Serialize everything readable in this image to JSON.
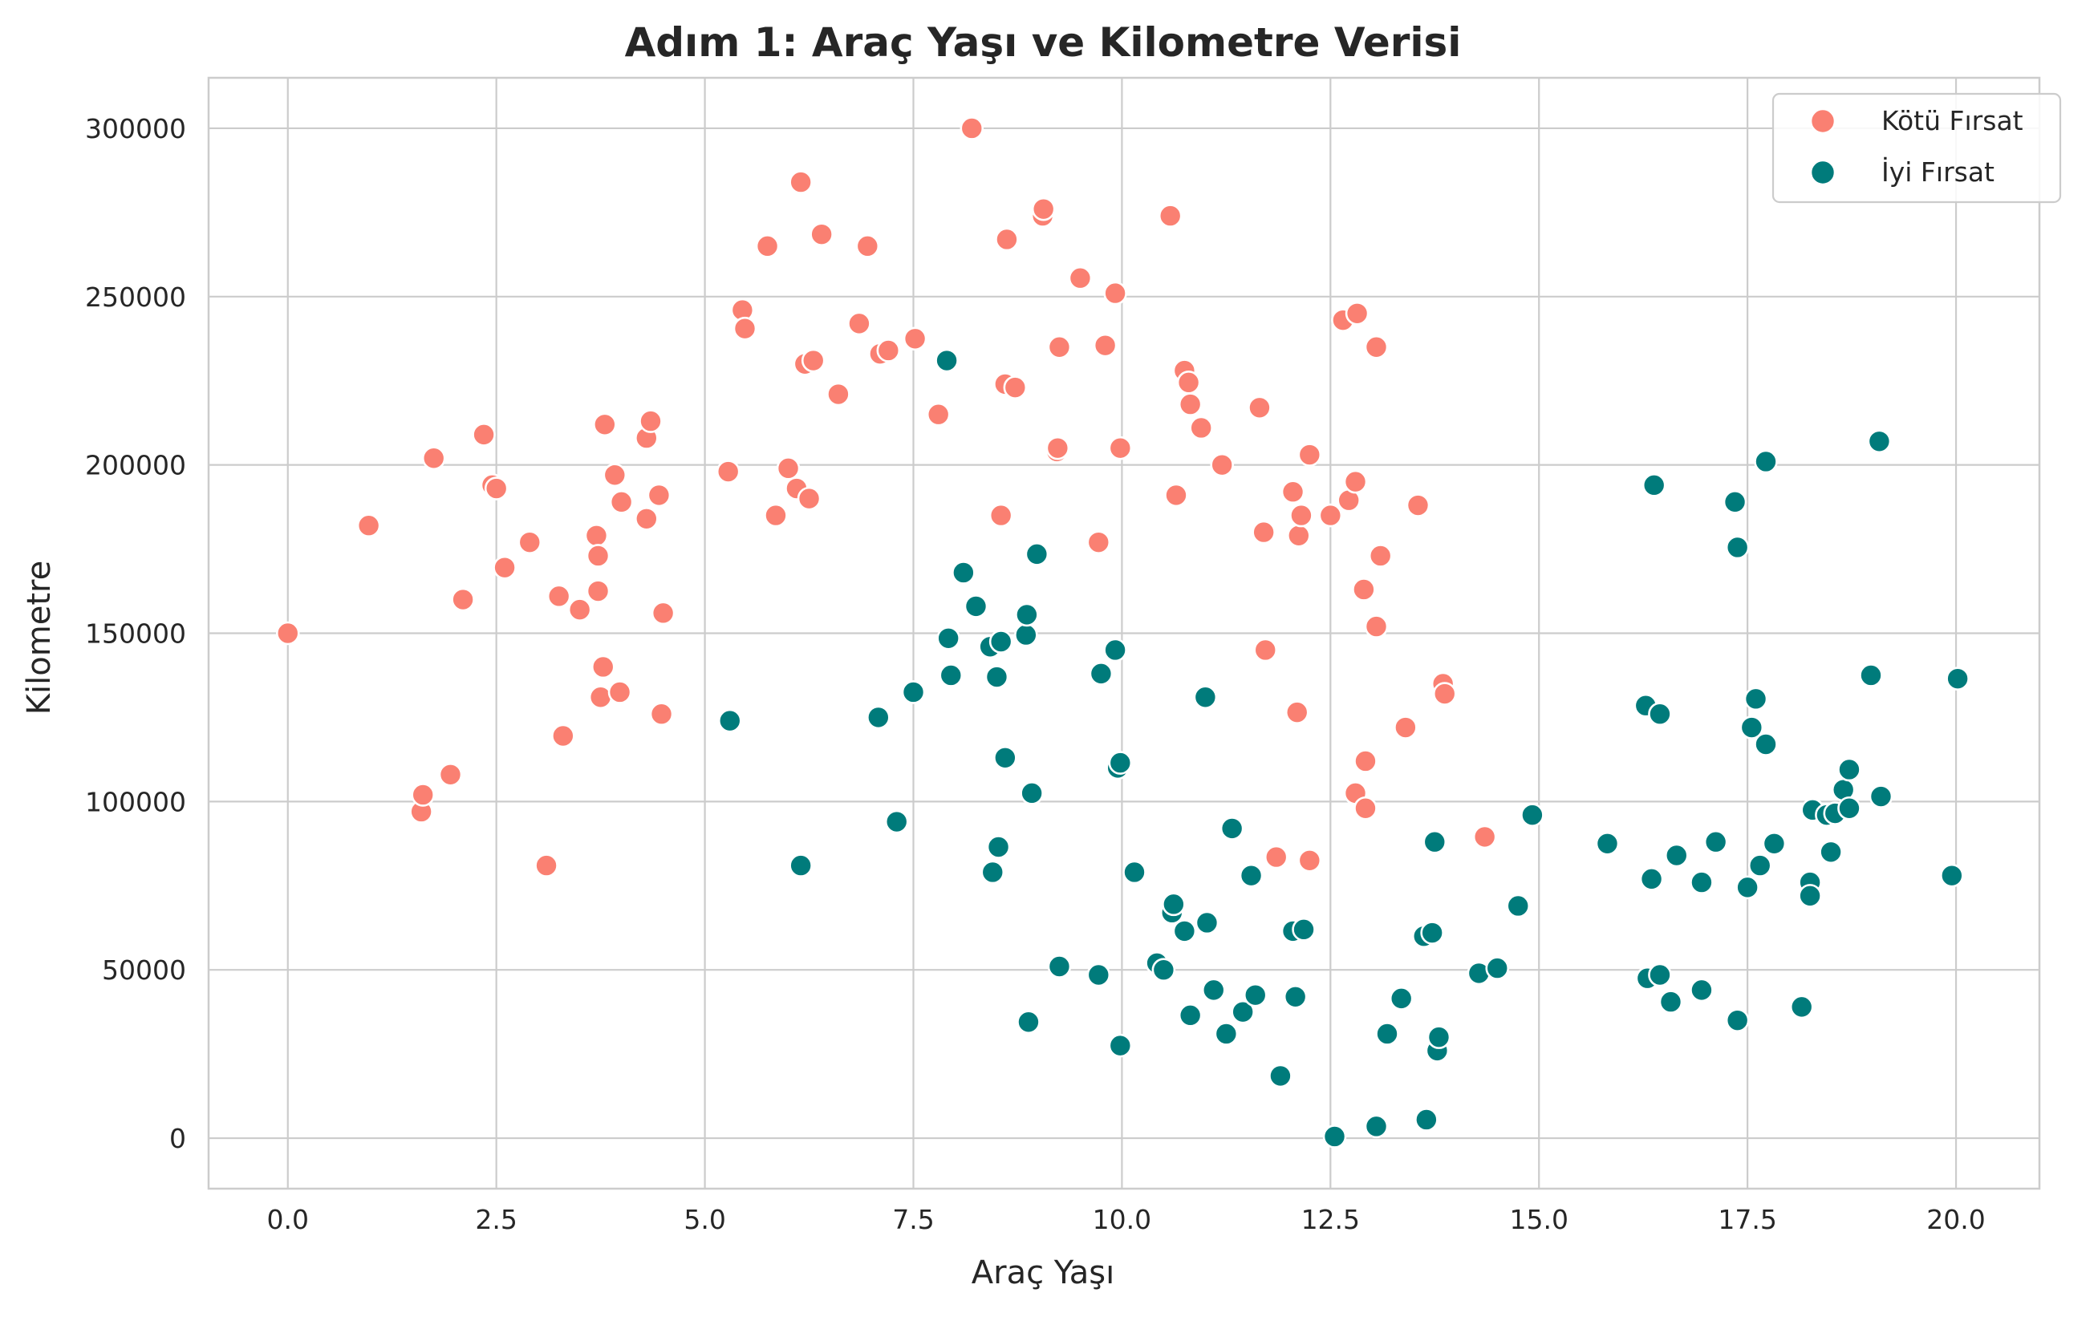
{
  "chart_data": {
    "type": "scatter",
    "title": "Adım 1: Araç Yaşı ve Kilometre Verisi",
    "xlabel": "Araç Yaşı",
    "ylabel": "Kilometre",
    "xlim": [
      -0.95,
      21.0
    ],
    "ylim": [
      -15000,
      315000
    ],
    "xticks": [
      0,
      2.5,
      5,
      7.5,
      10,
      12.5,
      15,
      17.5,
      20
    ],
    "xtick_labels": [
      "0.0",
      "2.5",
      "5.0",
      "7.5",
      "10.0",
      "12.5",
      "15.0",
      "17.5",
      "20.0"
    ],
    "yticks": [
      0,
      50000,
      100000,
      150000,
      200000,
      250000,
      300000
    ],
    "ytick_labels": [
      "0",
      "50000",
      "100000",
      "150000",
      "200000",
      "250000",
      "300000"
    ],
    "grid": true,
    "legend": "top-right",
    "series": [
      {
        "name": "Kötü Fırsat",
        "color": "#fa8072",
        "points": [
          [
            0.0,
            150000
          ],
          [
            0.97,
            182000
          ],
          [
            1.6,
            97000
          ],
          [
            1.62,
            102000
          ],
          [
            1.75,
            202000
          ],
          [
            1.95,
            108000
          ],
          [
            2.1,
            160000
          ],
          [
            2.35,
            209000
          ],
          [
            2.45,
            194000
          ],
          [
            2.5,
            193000
          ],
          [
            2.6,
            169500
          ],
          [
            2.9,
            177000
          ],
          [
            3.1,
            81000
          ],
          [
            3.25,
            161000
          ],
          [
            3.3,
            119500
          ],
          [
            3.5,
            157000
          ],
          [
            3.7,
            179000
          ],
          [
            3.72,
            173000
          ],
          [
            3.72,
            162500
          ],
          [
            3.75,
            131000
          ],
          [
            3.78,
            140000
          ],
          [
            3.8,
            212000
          ],
          [
            3.92,
            197000
          ],
          [
            3.98,
            132500
          ],
          [
            4.0,
            189000
          ],
          [
            4.3,
            208000
          ],
          [
            4.3,
            184000
          ],
          [
            4.35,
            213000
          ],
          [
            4.45,
            191000
          ],
          [
            4.48,
            126000
          ],
          [
            4.5,
            156000
          ],
          [
            5.28,
            198000
          ],
          [
            5.45,
            246000
          ],
          [
            5.48,
            240500
          ],
          [
            5.75,
            265000
          ],
          [
            5.85,
            185000
          ],
          [
            6.0,
            199000
          ],
          [
            6.1,
            193000
          ],
          [
            6.15,
            284000
          ],
          [
            6.2,
            230000
          ],
          [
            6.25,
            190000
          ],
          [
            6.3,
            231000
          ],
          [
            6.4,
            268500
          ],
          [
            6.6,
            221000
          ],
          [
            6.85,
            242000
          ],
          [
            6.95,
            265000
          ],
          [
            7.1,
            233000
          ],
          [
            7.2,
            234000
          ],
          [
            7.52,
            237500
          ],
          [
            7.8,
            215000
          ],
          [
            8.2,
            300000
          ],
          [
            8.55,
            185000
          ],
          [
            8.6,
            224000
          ],
          [
            8.62,
            267000
          ],
          [
            8.72,
            223000
          ],
          [
            9.05,
            274000
          ],
          [
            9.06,
            276000
          ],
          [
            9.22,
            204000
          ],
          [
            9.23,
            205000
          ],
          [
            9.25,
            235000
          ],
          [
            9.5,
            255500
          ],
          [
            9.72,
            177000
          ],
          [
            9.8,
            235500
          ],
          [
            9.92,
            251000
          ],
          [
            9.98,
            205000
          ],
          [
            10.58,
            274000
          ],
          [
            10.65,
            191000
          ],
          [
            10.75,
            228000
          ],
          [
            10.8,
            224500
          ],
          [
            10.82,
            218000
          ],
          [
            10.95,
            211000
          ],
          [
            11.2,
            200000
          ],
          [
            11.65,
            217000
          ],
          [
            11.7,
            180000
          ],
          [
            11.72,
            145000
          ],
          [
            11.85,
            83500
          ],
          [
            12.05,
            192000
          ],
          [
            12.1,
            126500
          ],
          [
            12.12,
            179000
          ],
          [
            12.15,
            185000
          ],
          [
            12.25,
            203000
          ],
          [
            12.25,
            82500
          ],
          [
            12.5,
            185000
          ],
          [
            12.65,
            243000
          ],
          [
            12.72,
            189500
          ],
          [
            12.82,
            245000
          ],
          [
            12.8,
            195000
          ],
          [
            12.8,
            102500
          ],
          [
            12.9,
            163000
          ],
          [
            12.92,
            112000
          ],
          [
            12.92,
            98000
          ],
          [
            13.05,
            235000
          ],
          [
            13.05,
            152000
          ],
          [
            13.1,
            173000
          ],
          [
            13.4,
            122000
          ],
          [
            13.55,
            188000
          ],
          [
            13.85,
            135000
          ],
          [
            13.87,
            132000
          ],
          [
            14.35,
            89500
          ]
        ]
      },
      {
        "name": "İyi Fırsat",
        "color": "#007b7b",
        "points": [
          [
            5.3,
            124000
          ],
          [
            6.15,
            81000
          ],
          [
            7.08,
            125000
          ],
          [
            7.3,
            94000
          ],
          [
            7.5,
            132500
          ],
          [
            7.9,
            231000
          ],
          [
            7.92,
            148500
          ],
          [
            7.95,
            137500
          ],
          [
            8.1,
            168000
          ],
          [
            8.25,
            158000
          ],
          [
            8.42,
            146000
          ],
          [
            8.45,
            79000
          ],
          [
            8.5,
            137000
          ],
          [
            8.52,
            86500
          ],
          [
            8.55,
            147500
          ],
          [
            8.6,
            113000
          ],
          [
            8.85,
            149500
          ],
          [
            8.86,
            155500
          ],
          [
            8.88,
            34500
          ],
          [
            8.92,
            102500
          ],
          [
            8.98,
            173500
          ],
          [
            9.25,
            51000
          ],
          [
            9.72,
            48500
          ],
          [
            9.75,
            138000
          ],
          [
            9.95,
            110000
          ],
          [
            9.98,
            111500
          ],
          [
            9.92,
            145000
          ],
          [
            9.98,
            27500
          ],
          [
            10.15,
            79000
          ],
          [
            10.42,
            52000
          ],
          [
            10.5,
            50000
          ],
          [
            10.6,
            67000
          ],
          [
            10.62,
            69500
          ],
          [
            10.75,
            61500
          ],
          [
            10.82,
            36500
          ],
          [
            11.0,
            131000
          ],
          [
            11.02,
            64000
          ],
          [
            11.1,
            44000
          ],
          [
            11.25,
            31000
          ],
          [
            11.32,
            92000
          ],
          [
            11.45,
            37500
          ],
          [
            11.55,
            78000
          ],
          [
            11.6,
            42500
          ],
          [
            11.9,
            18500
          ],
          [
            12.05,
            61500
          ],
          [
            12.08,
            42000
          ],
          [
            12.18,
            62000
          ],
          [
            12.55,
            500
          ],
          [
            13.05,
            3500
          ],
          [
            13.18,
            31000
          ],
          [
            13.35,
            41500
          ],
          [
            13.62,
            60000
          ],
          [
            13.65,
            5500
          ],
          [
            13.72,
            61000
          ],
          [
            13.75,
            88000
          ],
          [
            13.78,
            26000
          ],
          [
            13.8,
            30000
          ],
          [
            14.28,
            49000
          ],
          [
            14.5,
            50500
          ],
          [
            14.75,
            69000
          ],
          [
            14.92,
            96000
          ],
          [
            15.82,
            87500
          ],
          [
            16.28,
            128500
          ],
          [
            16.3,
            47500
          ],
          [
            16.35,
            77000
          ],
          [
            16.38,
            194000
          ],
          [
            16.45,
            126000
          ],
          [
            16.45,
            48500
          ],
          [
            16.58,
            40500
          ],
          [
            16.65,
            84000
          ],
          [
            16.95,
            76000
          ],
          [
            16.95,
            44000
          ],
          [
            17.12,
            88000
          ],
          [
            17.38,
            35000
          ],
          [
            17.35,
            189000
          ],
          [
            17.38,
            175500
          ],
          [
            17.5,
            74500
          ],
          [
            17.55,
            122000
          ],
          [
            17.6,
            130500
          ],
          [
            17.65,
            81000
          ],
          [
            17.72,
            201000
          ],
          [
            17.72,
            117000
          ],
          [
            17.82,
            87500
          ],
          [
            18.15,
            39000
          ],
          [
            18.25,
            76000
          ],
          [
            18.25,
            72000
          ],
          [
            18.28,
            97500
          ],
          [
            18.45,
            96000
          ],
          [
            18.5,
            85000
          ],
          [
            18.55,
            96500
          ],
          [
            18.65,
            103500
          ],
          [
            18.72,
            98000
          ],
          [
            18.72,
            109500
          ],
          [
            18.98,
            137500
          ],
          [
            19.08,
            207000
          ],
          [
            19.1,
            101500
          ],
          [
            19.95,
            78000
          ],
          [
            20.02,
            136500
          ]
        ]
      }
    ]
  }
}
